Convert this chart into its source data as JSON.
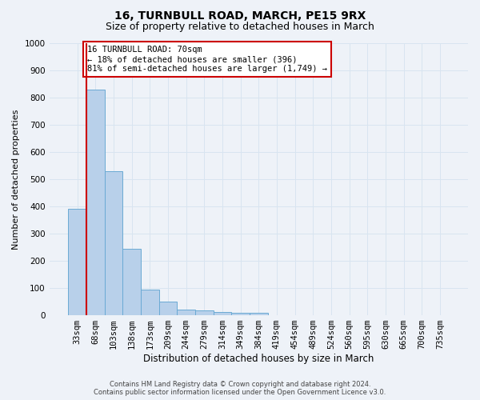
{
  "title": "16, TURNBULL ROAD, MARCH, PE15 9RX",
  "subtitle": "Size of property relative to detached houses in March",
  "xlabel": "Distribution of detached houses by size in March",
  "ylabel": "Number of detached properties",
  "categories": [
    "33sqm",
    "68sqm",
    "103sqm",
    "138sqm",
    "173sqm",
    "209sqm",
    "244sqm",
    "279sqm",
    "314sqm",
    "349sqm",
    "384sqm",
    "419sqm",
    "454sqm",
    "489sqm",
    "524sqm",
    "560sqm",
    "595sqm",
    "630sqm",
    "665sqm",
    "700sqm",
    "735sqm"
  ],
  "bar_heights": [
    390,
    830,
    530,
    243,
    95,
    50,
    22,
    17,
    12,
    9,
    8,
    0,
    0,
    0,
    0,
    0,
    0,
    0,
    0,
    0,
    0
  ],
  "bar_color": "#b8d0ea",
  "bar_edge_color": "#6aaad4",
  "background_color": "#eef2f8",
  "grid_color": "#d8e4f0",
  "ylim": [
    0,
    1000
  ],
  "yticks": [
    0,
    100,
    200,
    300,
    400,
    500,
    600,
    700,
    800,
    900,
    1000
  ],
  "vline_x": 1.0,
  "vline_color": "#cc0000",
  "annotation_text": "16 TURNBULL ROAD: 70sqm\n← 18% of detached houses are smaller (396)\n81% of semi-detached houses are larger (1,749) →",
  "annotation_box_color": "#ffffff",
  "annotation_box_edge_color": "#cc0000",
  "footer_line1": "Contains HM Land Registry data © Crown copyright and database right 2024.",
  "footer_line2": "Contains public sector information licensed under the Open Government Licence v3.0.",
  "title_fontsize": 10,
  "subtitle_fontsize": 9,
  "xlabel_fontsize": 8.5,
  "ylabel_fontsize": 8,
  "tick_fontsize": 7.5,
  "annotation_fontsize": 7.5,
  "footer_fontsize": 6
}
